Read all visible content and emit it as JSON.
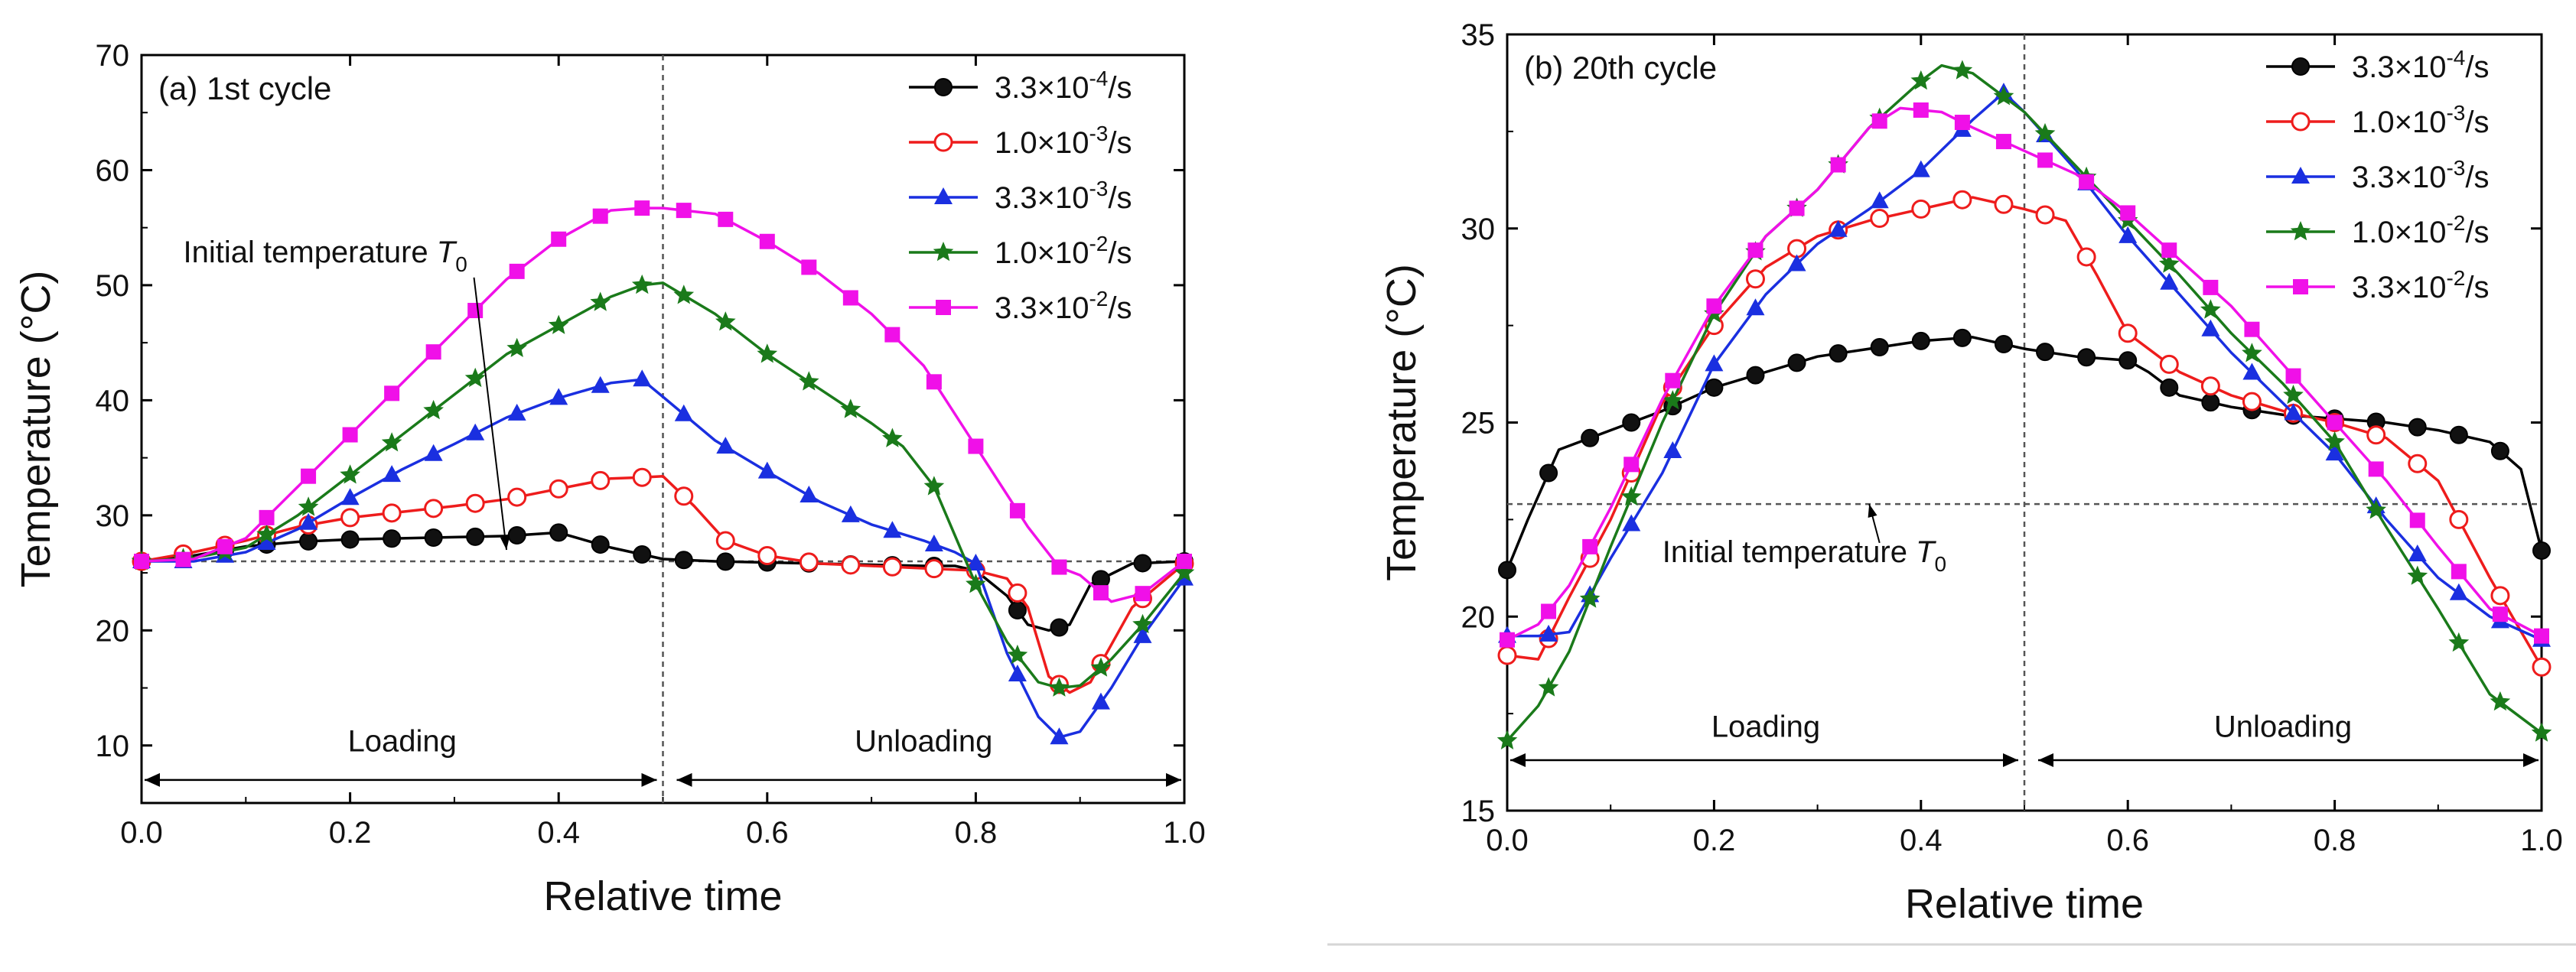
{
  "chart_data": [
    {
      "type": "line",
      "panel": "(a) 1st cycle",
      "xlabel": "Relative time",
      "ylabel": "Temperature (°C)",
      "xlim": [
        0,
        1.0
      ],
      "ylim": [
        5,
        70
      ],
      "xticks": [
        "0.0",
        "0.2",
        "0.4",
        "0.6",
        "0.8",
        "1.0"
      ],
      "xtick_values": [
        0,
        0.2,
        0.4,
        0.6,
        0.8,
        1.0
      ],
      "yticks": [
        "10",
        "20",
        "30",
        "40",
        "50",
        "60",
        "70"
      ],
      "ytick_values": [
        10,
        20,
        30,
        40,
        50,
        60,
        70
      ],
      "t0": 26,
      "annotation": {
        "text": "Initial temperature ",
        "symbol": "T",
        "sub": "0",
        "text_at": [
          0.04,
          52
        ],
        "arrow_to": [
          0.35,
          27
        ]
      },
      "phases": {
        "loading": "Loading",
        "unloading": "Unloading",
        "split": 0.5,
        "y": 7,
        "label_y": 9.5
      },
      "legend_position": "top-right",
      "series": [
        {
          "name": "3.3×10⁻⁴/s",
          "base": "3.3×10",
          "exp": "-4",
          "unit": "/s",
          "color": "#000000",
          "marker": "circle-filled",
          "x": [
            0,
            0.05,
            0.1,
            0.15,
            0.2,
            0.25,
            0.3,
            0.35,
            0.4,
            0.45,
            0.5,
            0.55,
            0.6,
            0.65,
            0.7,
            0.75,
            0.78,
            0.8,
            0.83,
            0.85,
            0.87,
            0.89,
            0.91,
            0.95,
            1.0
          ],
          "y": [
            26,
            26.5,
            27.3,
            27.7,
            27.9,
            28,
            28.1,
            28.2,
            28.5,
            27.2,
            26.2,
            26,
            25.9,
            25.8,
            25.7,
            25.6,
            25.6,
            25.2,
            23,
            20.5,
            20,
            20.5,
            24,
            25.8,
            26
          ]
        },
        {
          "name": "1.0×10⁻³/s",
          "base": "1.0×10",
          "exp": "-3",
          "unit": "/s",
          "color": "#ee1c1c",
          "marker": "circle-open",
          "x": [
            0,
            0.05,
            0.1,
            0.15,
            0.2,
            0.25,
            0.3,
            0.35,
            0.4,
            0.45,
            0.48,
            0.5,
            0.53,
            0.56,
            0.6,
            0.65,
            0.7,
            0.75,
            0.8,
            0.83,
            0.85,
            0.87,
            0.89,
            0.91,
            0.95,
            1.0
          ],
          "y": [
            26,
            26.8,
            27.8,
            29,
            29.8,
            30.3,
            30.8,
            31.4,
            32.3,
            33.2,
            33.3,
            33.4,
            30.8,
            27.8,
            26.5,
            25.8,
            25.6,
            25.4,
            25.2,
            24.5,
            22,
            16,
            14.6,
            15.5,
            22,
            25.8
          ]
        },
        {
          "name": "3.3×10⁻³/s",
          "base": "3.3×10",
          "exp": "-3",
          "unit": "/s",
          "color": "#1a2fe0",
          "marker": "triangle-filled",
          "x": [
            0,
            0.05,
            0.1,
            0.15,
            0.2,
            0.25,
            0.3,
            0.35,
            0.4,
            0.45,
            0.48,
            0.5,
            0.55,
            0.6,
            0.65,
            0.7,
            0.75,
            0.78,
            0.8,
            0.83,
            0.86,
            0.88,
            0.9,
            0.93,
            0.96,
            1.0
          ],
          "y": [
            26,
            26,
            26.8,
            28.8,
            31.5,
            34,
            36.2,
            38.5,
            40.2,
            41.5,
            41.8,
            40.3,
            36.5,
            33.8,
            31.2,
            29.2,
            27.8,
            26.8,
            25.8,
            18,
            12.5,
            10.7,
            11.2,
            15,
            19.5,
            24.5
          ]
        },
        {
          "name": "1.0×10⁻²/s",
          "base": "1.0×10",
          "exp": "-2",
          "unit": "/s",
          "color": "#1a7a1a",
          "marker": "star-filled",
          "x": [
            0,
            0.05,
            0.1,
            0.15,
            0.2,
            0.25,
            0.3,
            0.35,
            0.4,
            0.45,
            0.48,
            0.5,
            0.55,
            0.6,
            0.65,
            0.7,
            0.73,
            0.76,
            0.8,
            0.83,
            0.86,
            0.88,
            0.9,
            0.93,
            0.96,
            1.0
          ],
          "y": [
            26,
            26.3,
            27.2,
            30,
            33.5,
            37,
            40.5,
            44,
            46.5,
            49,
            50,
            50.2,
            47.5,
            44,
            41,
            38,
            36,
            32.5,
            24,
            19,
            15.5,
            15,
            15.2,
            17.5,
            20.5,
            25
          ]
        },
        {
          "name": "3.3×10⁻²/s",
          "base": "3.3×10",
          "exp": "-2",
          "unit": "/s",
          "color": "#f010e8",
          "marker": "square-filled",
          "x": [
            0,
            0.05,
            0.1,
            0.15,
            0.2,
            0.25,
            0.3,
            0.35,
            0.4,
            0.45,
            0.48,
            0.5,
            0.55,
            0.6,
            0.65,
            0.7,
            0.75,
            0.8,
            0.85,
            0.88,
            0.9,
            0.93,
            0.96,
            1.0
          ],
          "y": [
            26,
            26.2,
            28,
            32.5,
            37,
            41.5,
            46,
            50.5,
            54,
            56.5,
            56.7,
            56.7,
            56.2,
            53.8,
            51,
            47.5,
            43,
            36,
            29,
            25.5,
            24.8,
            22.5,
            23.2,
            26
          ]
        }
      ]
    },
    {
      "type": "line",
      "panel": "(b) 20th cycle",
      "xlabel": "Relative time",
      "ylabel": "Temperature (°C)",
      "xlim": [
        0,
        1.0
      ],
      "ylim": [
        15,
        35
      ],
      "xticks": [
        "0.0",
        "0.2",
        "0.4",
        "0.6",
        "0.8",
        "1.0"
      ],
      "xtick_values": [
        0,
        0.2,
        0.4,
        0.6,
        0.8,
        1.0
      ],
      "yticks": [
        "15",
        "20",
        "25",
        "30",
        "35"
      ],
      "ytick_values": [
        15,
        20,
        25,
        30,
        35
      ],
      "t0": 22.9,
      "annotation": {
        "text": "Initial temperature ",
        "symbol": "T",
        "sub": "0",
        "text_at": [
          0.15,
          21.4
        ],
        "arrow_to": [
          0.35,
          22.9
        ],
        "arrow_from": [
          0.36,
          21.9
        ]
      },
      "phases": {
        "loading": "Loading",
        "unloading": "Unloading",
        "split": 0.5,
        "y": 16.3,
        "label_y": 16.9
      },
      "legend_position": "top-right",
      "series": [
        {
          "name": "3.3×10⁻⁴/s",
          "base": "3.3×10",
          "exp": "-4",
          "unit": "/s",
          "color": "#000000",
          "marker": "circle-filled",
          "x": [
            0,
            0.02,
            0.05,
            0.1,
            0.15,
            0.2,
            0.25,
            0.3,
            0.35,
            0.4,
            0.45,
            0.5,
            0.55,
            0.6,
            0.62,
            0.65,
            0.7,
            0.75,
            0.8,
            0.85,
            0.9,
            0.95,
            0.98,
            1.0
          ],
          "y": [
            21.2,
            22.5,
            24.3,
            24.8,
            25.3,
            25.9,
            26.3,
            26.7,
            26.9,
            27.1,
            27.2,
            26.9,
            26.7,
            26.6,
            26.3,
            25.7,
            25.4,
            25.2,
            25.1,
            25,
            24.8,
            24.5,
            23.8,
            21.7
          ]
        },
        {
          "name": "1.0×10⁻³/s",
          "base": "1.0×10",
          "exp": "-3",
          "unit": "/s",
          "color": "#ee1c1c",
          "marker": "circle-open",
          "x": [
            0,
            0.03,
            0.06,
            0.1,
            0.15,
            0.2,
            0.25,
            0.3,
            0.35,
            0.4,
            0.45,
            0.5,
            0.54,
            0.57,
            0.6,
            0.65,
            0.7,
            0.75,
            0.8,
            0.85,
            0.9,
            0.95,
            1.0
          ],
          "y": [
            19,
            18.9,
            20.5,
            22.5,
            25.5,
            27.5,
            29,
            29.8,
            30.2,
            30.5,
            30.8,
            30.5,
            30.2,
            28.8,
            27.3,
            26.3,
            25.7,
            25.3,
            25,
            24.6,
            23.5,
            21,
            18.7
          ]
        },
        {
          "name": "3.3×10⁻³/s",
          "base": "3.3×10",
          "exp": "-3",
          "unit": "/s",
          "color": "#1a2fe0",
          "marker": "triangle-filled",
          "x": [
            0,
            0.03,
            0.06,
            0.1,
            0.15,
            0.2,
            0.25,
            0.3,
            0.35,
            0.4,
            0.45,
            0.48,
            0.5,
            0.55,
            0.6,
            0.65,
            0.7,
            0.75,
            0.8,
            0.85,
            0.9,
            0.95,
            1.0
          ],
          "y": [
            19.5,
            19.5,
            19.6,
            21.5,
            23.7,
            26.5,
            28.3,
            29.6,
            30.5,
            31.5,
            32.8,
            33.5,
            33,
            31.5,
            29.8,
            28.3,
            26.8,
            25.5,
            24.2,
            22.5,
            21,
            20,
            19.4
          ]
        },
        {
          "name": "1.0×10⁻²/s",
          "base": "1.0×10",
          "exp": "-2",
          "unit": "/s",
          "color": "#1a7a1a",
          "marker": "star-filled",
          "x": [
            0,
            0.03,
            0.06,
            0.1,
            0.15,
            0.2,
            0.25,
            0.3,
            0.35,
            0.4,
            0.42,
            0.45,
            0.5,
            0.55,
            0.6,
            0.65,
            0.7,
            0.75,
            0.8,
            0.85,
            0.9,
            0.95,
            1.0
          ],
          "y": [
            16.8,
            17.7,
            19.1,
            21.8,
            25,
            27.8,
            29.8,
            31,
            32.6,
            33.8,
            34.2,
            34,
            33,
            31.6,
            30.2,
            28.8,
            27.3,
            26,
            24.5,
            22.3,
            20.2,
            18,
            17
          ]
        },
        {
          "name": "3.3×10⁻²/s",
          "base": "3.3×10",
          "exp": "-2",
          "unit": "/s",
          "color": "#f010e8",
          "marker": "square-filled",
          "x": [
            0,
            0.03,
            0.06,
            0.1,
            0.15,
            0.2,
            0.25,
            0.3,
            0.35,
            0.38,
            0.42,
            0.45,
            0.5,
            0.55,
            0.6,
            0.65,
            0.7,
            0.75,
            0.8,
            0.85,
            0.9,
            0.95,
            1.0
          ],
          "y": [
            19.4,
            19.8,
            20.8,
            22.8,
            25.6,
            28,
            29.8,
            31,
            32.6,
            33.1,
            33,
            32.6,
            32,
            31.4,
            30.4,
            29.2,
            28,
            26.5,
            25,
            23.5,
            21.8,
            20.2,
            19.5
          ]
        }
      ]
    }
  ]
}
